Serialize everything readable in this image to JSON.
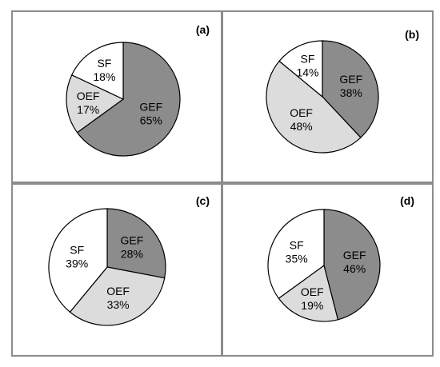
{
  "colors": {
    "GEF": "#8c8c8c",
    "OEF": "#dcdcdc",
    "SF": "#ffffff",
    "stroke": "#000000"
  },
  "chart_data": [
    {
      "type": "pie",
      "panel_label": "(a)",
      "slices": [
        {
          "name": "GEF",
          "value": 65,
          "label": "65%"
        },
        {
          "name": "OEF",
          "value": 17,
          "label": "17%"
        },
        {
          "name": "SF",
          "value": 18,
          "label": "18%"
        }
      ]
    },
    {
      "type": "pie",
      "panel_label": "(b)",
      "slices": [
        {
          "name": "GEF",
          "value": 38,
          "label": "38%"
        },
        {
          "name": "OEF",
          "value": 48,
          "label": "48%"
        },
        {
          "name": "SF",
          "value": 14,
          "label": "14%"
        }
      ]
    },
    {
      "type": "pie",
      "panel_label": "(c)",
      "slices": [
        {
          "name": "GEF",
          "value": 28,
          "label": "28%"
        },
        {
          "name": "OEF",
          "value": 33,
          "label": "33%"
        },
        {
          "name": "SF",
          "value": 39,
          "label": "39%"
        }
      ]
    },
    {
      "type": "pie",
      "panel_label": "(d)",
      "slices": [
        {
          "name": "GEF",
          "value": 46,
          "label": "46%"
        },
        {
          "name": "OEF",
          "value": 19,
          "label": "19%"
        },
        {
          "name": "SF",
          "value": 35,
          "label": "35%"
        }
      ]
    }
  ]
}
